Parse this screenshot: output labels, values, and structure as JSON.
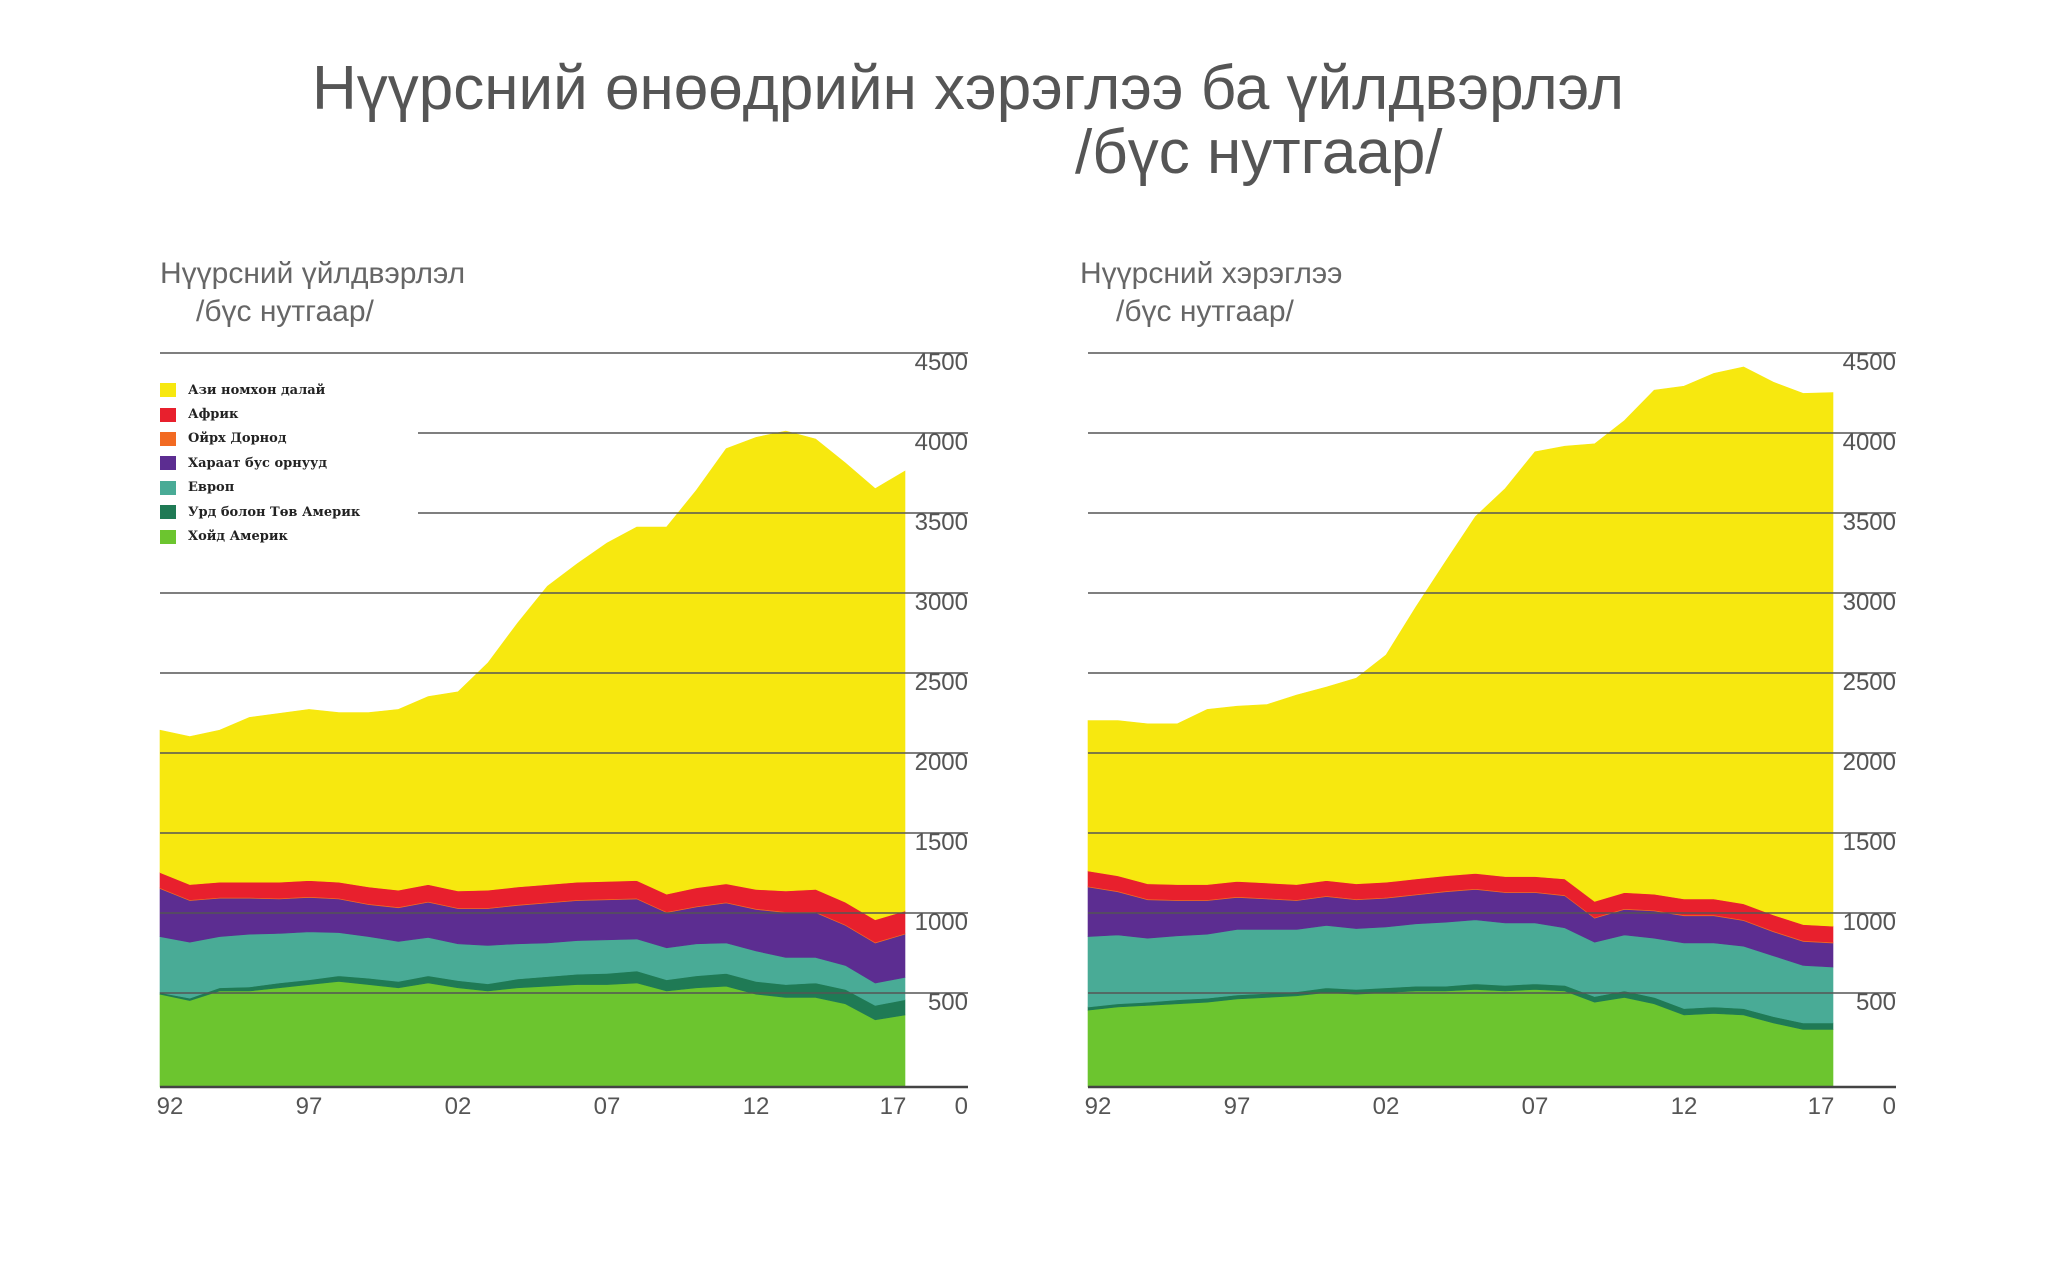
{
  "title": {
    "line1": "Нүүрсний өнөөдрийн хэрэглээ ба үйлдвэрлэл",
    "line2": "/бүс нутгаар/"
  },
  "legend": [
    {
      "label": "Ази номхон далай",
      "color": "#f7e80f"
    },
    {
      "label": "Африк",
      "color": "#e8202d"
    },
    {
      "label": "Ойрх Дорнод",
      "color": "#f26a22"
    },
    {
      "label": "Хараат бус орнууд",
      "color": "#5c2d91"
    },
    {
      "label": "Европ",
      "color": "#49ab96"
    },
    {
      "label": "Урд болон Төв Америк",
      "color": "#1f7a55"
    },
    {
      "label": "Хойд Америк",
      "color": "#6cc52f"
    }
  ],
  "chart_data": [
    {
      "type": "area",
      "stacked": true,
      "title": "Нүүрсний үйлдвэрлэл",
      "subtitle": "/бүс нутгаар/",
      "xlabel": "",
      "ylabel": "",
      "x": [
        1992,
        1993,
        1994,
        1995,
        1996,
        1997,
        1998,
        1999,
        2000,
        2001,
        2002,
        2003,
        2004,
        2005,
        2006,
        2007,
        2008,
        2009,
        2010,
        2011,
        2012,
        2013,
        2014,
        2015,
        2016,
        2017
      ],
      "x_ticks": [
        "92",
        "97",
        "02",
        "07",
        "12",
        "17"
      ],
      "y_ticks": [
        "4500",
        "4000",
        "3500",
        "3000",
        "2500",
        "2000",
        "1500",
        "1000",
        "500",
        "0"
      ],
      "ylim": [
        0,
        4500
      ],
      "grid": true,
      "legend_position": "top-left",
      "series": [
        {
          "name": "Хойд Америк",
          "color": "#6cc52f",
          "values": [
            580,
            540,
            600,
            600,
            620,
            640,
            660,
            640,
            620,
            650,
            620,
            600,
            620,
            630,
            640,
            640,
            650,
            600,
            620,
            630,
            580,
            560,
            560,
            520,
            420,
            450
          ]
        },
        {
          "name": "Урд болон Төв Америк",
          "color": "#1f7a55",
          "values": [
            10,
            15,
            20,
            25,
            30,
            30,
            35,
            40,
            40,
            45,
            45,
            45,
            55,
            60,
            65,
            70,
            75,
            70,
            75,
            80,
            80,
            80,
            90,
            90,
            90,
            95
          ]
        },
        {
          "name": "Европ",
          "color": "#49ab96",
          "values": [
            350,
            350,
            320,
            330,
            310,
            300,
            270,
            260,
            250,
            240,
            230,
            240,
            220,
            210,
            210,
            210,
            200,
            200,
            200,
            190,
            190,
            170,
            160,
            150,
            140,
            140
          ]
        },
        {
          "name": "Хараат бус орнууд",
          "color": "#5c2d91",
          "values": [
            300,
            260,
            240,
            225,
            215,
            215,
            210,
            200,
            210,
            220,
            220,
            230,
            240,
            250,
            250,
            250,
            250,
            220,
            230,
            250,
            260,
            280,
            280,
            250,
            250,
            270
          ]
        },
        {
          "name": "Ойрх Дорнод",
          "color": "#f26a22",
          "values": [
            5,
            5,
            5,
            5,
            5,
            5,
            5,
            5,
            5,
            5,
            5,
            5,
            5,
            5,
            5,
            5,
            5,
            5,
            5,
            5,
            5,
            5,
            5,
            5,
            5,
            5
          ]
        },
        {
          "name": "Африк",
          "color": "#e8202d",
          "values": [
            95,
            95,
            95,
            95,
            100,
            100,
            100,
            105,
            105,
            105,
            105,
            110,
            110,
            110,
            110,
            110,
            110,
            110,
            115,
            115,
            120,
            130,
            140,
            140,
            140,
            140
          ]
        },
        {
          "name": "Ази номхон далай",
          "color": "#f7e80f",
          "values": [
            890,
            925,
            950,
            1030,
            1055,
            1070,
            1060,
            1090,
            1130,
            1175,
            1245,
            1420,
            1650,
            1865,
            1990,
            2115,
            2210,
            2295,
            2485,
            2720,
            2825,
            2875,
            2815,
            2745,
            2695,
            2750
          ]
        }
      ]
    },
    {
      "type": "area",
      "stacked": true,
      "title": "Нүүрсний хэрэглээ",
      "subtitle": "/бүс нутгаар/",
      "xlabel": "",
      "ylabel": "",
      "x": [
        1992,
        1993,
        1994,
        1995,
        1996,
        1997,
        1998,
        1999,
        2000,
        2001,
        2002,
        2003,
        2004,
        2005,
        2006,
        2007,
        2008,
        2009,
        2010,
        2011,
        2012,
        2013,
        2014,
        2015,
        2016,
        2017
      ],
      "x_ticks": [
        "92",
        "97",
        "02",
        "07",
        "12",
        "17"
      ],
      "y_ticks": [
        "4500",
        "4000",
        "3500",
        "3000",
        "2500",
        "2000",
        "1500",
        "1000",
        "500",
        "0"
      ],
      "ylim": [
        0,
        4500
      ],
      "grid": true,
      "series": [
        {
          "name": "Хойд Америк",
          "color": "#6cc52f",
          "values": [
            480,
            500,
            510,
            520,
            530,
            550,
            560,
            570,
            590,
            580,
            590,
            600,
            600,
            610,
            600,
            610,
            600,
            530,
            560,
            520,
            450,
            460,
            450,
            400,
            360,
            360
          ]
        },
        {
          "name": "Урд болон Төв Америк",
          "color": "#1f7a55",
          "values": [
            20,
            20,
            20,
            25,
            25,
            25,
            25,
            25,
            30,
            30,
            30,
            30,
            30,
            35,
            35,
            35,
            35,
            35,
            40,
            40,
            40,
            40,
            40,
            40,
            40,
            40
          ]
        },
        {
          "name": "Европ",
          "color": "#49ab96",
          "values": [
            440,
            430,
            400,
            400,
            400,
            410,
            400,
            390,
            390,
            380,
            380,
            390,
            400,
            400,
            390,
            380,
            360,
            340,
            350,
            370,
            410,
            400,
            390,
            380,
            360,
            350
          ]
        },
        {
          "name": "Хараат бус орнууд",
          "color": "#5c2d91",
          "values": [
            310,
            270,
            240,
            220,
            210,
            200,
            190,
            180,
            180,
            180,
            180,
            180,
            190,
            190,
            190,
            190,
            200,
            150,
            160,
            170,
            170,
            170,
            160,
            150,
            150,
            150
          ]
        },
        {
          "name": "Ойрх Дорнод",
          "color": "#f26a22",
          "values": [
            5,
            5,
            5,
            5,
            5,
            5,
            5,
            5,
            5,
            5,
            5,
            5,
            5,
            5,
            5,
            5,
            5,
            5,
            5,
            5,
            5,
            5,
            5,
            5,
            5,
            5
          ]
        },
        {
          "name": "Африк",
          "color": "#e8202d",
          "values": [
            95,
            95,
            95,
            95,
            95,
            95,
            95,
            95,
            95,
            95,
            95,
            95,
            95,
            95,
            95,
            95,
            100,
            100,
            100,
            100,
            100,
            100,
            100,
            100,
            100,
            100
          ]
        },
        {
          "name": "Ази номхон далай",
          "color": "#f7e80f",
          "values": [
            940,
            970,
            1000,
            1005,
            1095,
            1095,
            1115,
            1185,
            1210,
            1285,
            1420,
            1700,
            1965,
            2230,
            2425,
            2655,
            2705,
            2860,
            2950,
            3150,
            3205,
            3285,
            3355,
            3330,
            3320,
            3335
          ]
        }
      ]
    }
  ]
}
